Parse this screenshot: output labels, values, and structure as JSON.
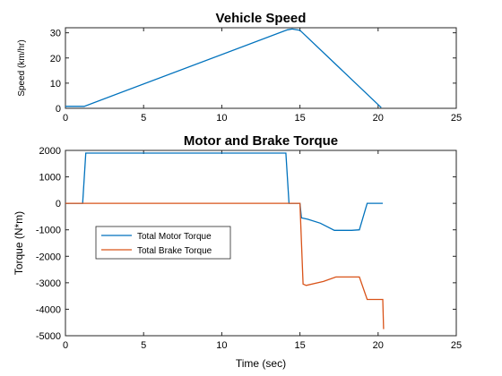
{
  "colors": {
    "motor": "#0072BD",
    "brake": "#D95319",
    "speed": "#0072BD"
  },
  "chart_data": [
    {
      "type": "line",
      "title": "Vehicle Speed",
      "xlabel": "",
      "ylabel": "Speed (km/hr)",
      "xlim": [
        0,
        25
      ],
      "ylim": [
        0,
        32
      ],
      "xticks": [
        0,
        5,
        10,
        15,
        20,
        25
      ],
      "yticks": [
        0,
        10,
        20,
        30
      ],
      "grid": false,
      "series": [
        {
          "x": [
            0,
            1.2,
            14.2,
            14.5,
            15.0,
            20.2
          ],
          "y": [
            0.8,
            0.8,
            31.2,
            31.5,
            31.0,
            0.3
          ]
        }
      ]
    },
    {
      "type": "line",
      "title": "Motor and Brake Torque",
      "xlabel": "Time (sec)",
      "ylabel": "Torque (N*m)",
      "xlim": [
        0,
        25
      ],
      "ylim": [
        -5000,
        2000
      ],
      "xticks": [
        0,
        5,
        10,
        15,
        20,
        25
      ],
      "yticks": [
        2000,
        1000,
        0,
        -1000,
        -2000,
        -3000,
        -4000,
        -5000
      ],
      "grid": false,
      "legend_position": "middle-left",
      "series": [
        {
          "name": "Total Motor Torque",
          "x": [
            0,
            1.1,
            1.3,
            14.1,
            14.3,
            15.0,
            15.1,
            15.5,
            16.3,
            17.2,
            18.3,
            18.8,
            19.3,
            20.3
          ],
          "y": [
            0,
            0,
            1900,
            1900,
            0,
            0,
            -550,
            -600,
            -750,
            -1020,
            -1020,
            -1000,
            0,
            0
          ]
        },
        {
          "name": "Total Brake Torque",
          "x": [
            0,
            15.0,
            15.2,
            15.4,
            16.5,
            17.3,
            18.3,
            18.8,
            19.3,
            20.0,
            20.2,
            20.3,
            20.35
          ],
          "y": [
            0,
            0,
            -3050,
            -3100,
            -2950,
            -2780,
            -2780,
            -2780,
            -3630,
            -3630,
            -3630,
            -3630,
            -4750
          ]
        }
      ]
    }
  ]
}
